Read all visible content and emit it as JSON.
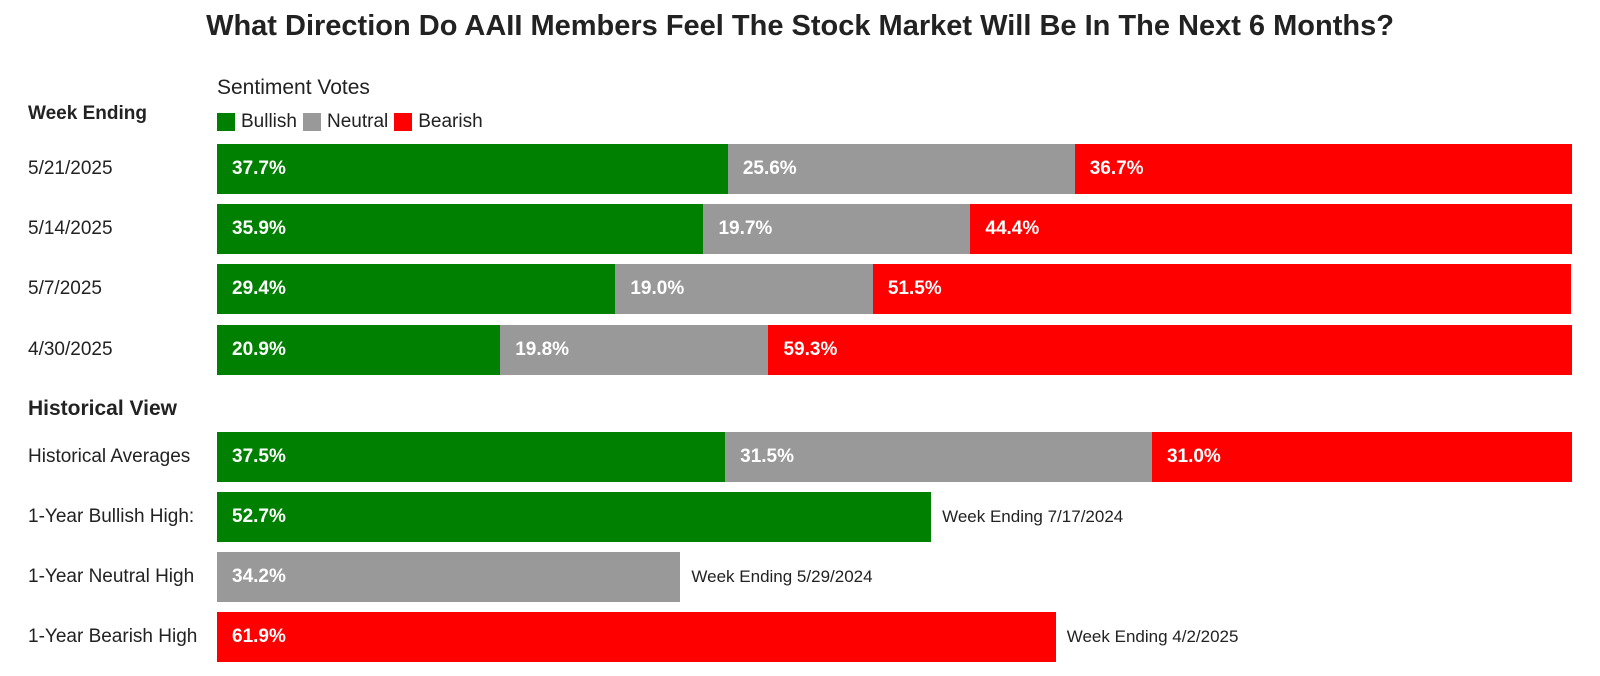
{
  "chart_data": {
    "type": "bar",
    "orientation": "horizontal",
    "stacked": true,
    "title": "What Direction Do AAII Members Feel The Stock Market Will Be In The Next 6 Months?",
    "subtitle": "Sentiment Votes",
    "legend": [
      {
        "label": "Bullish",
        "color": "#008000"
      },
      {
        "label": "Neutral",
        "color": "#999999"
      },
      {
        "label": "Bearish",
        "color": "#ff0000"
      }
    ],
    "week_section_label": "Week Ending",
    "weeks": [
      {
        "label": "5/21/2025",
        "bullish": 37.7,
        "neutral": 25.6,
        "bearish": 36.7
      },
      {
        "label": "5/14/2025",
        "bullish": 35.9,
        "neutral": 19.7,
        "bearish": 44.4
      },
      {
        "label": "5/7/2025",
        "bullish": 29.4,
        "neutral": 19.0,
        "bearish": 51.5
      },
      {
        "label": "4/30/2025",
        "bullish": 20.9,
        "neutral": 19.8,
        "bearish": 59.3
      }
    ],
    "historical_section_label": "Historical View",
    "historical_averages": {
      "label": "Historical Averages",
      "bullish": 37.5,
      "neutral": 31.5,
      "bearish": 31.0
    },
    "highs": [
      {
        "label": "1-Year Bullish High:",
        "value": 52.7,
        "series": "bullish",
        "note": "Week Ending 7/17/2024"
      },
      {
        "label": "1-Year Neutral High",
        "value": 34.2,
        "series": "neutral",
        "note": "Week Ending 5/29/2024"
      },
      {
        "label": "1-Year Bearish High",
        "value": 61.9,
        "series": "bearish",
        "note": "Week Ending 4/2/2025"
      }
    ]
  }
}
